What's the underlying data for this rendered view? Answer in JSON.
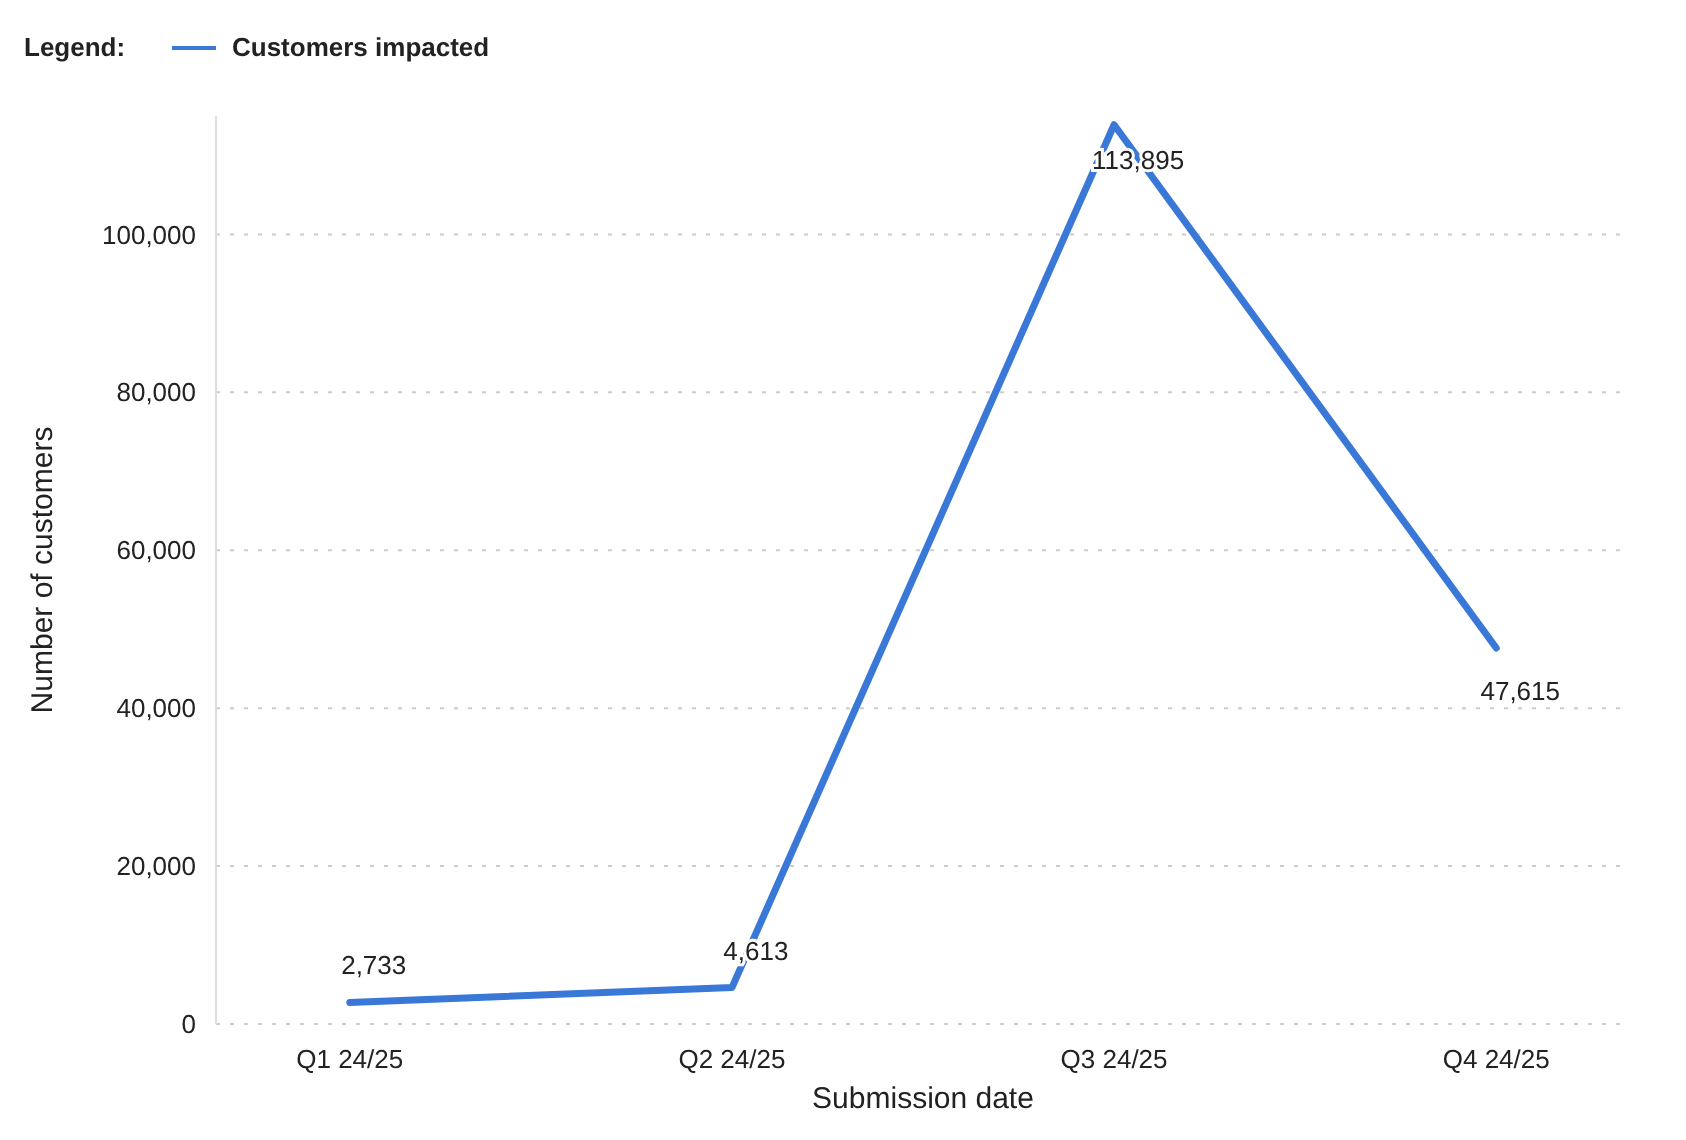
{
  "chart_data": {
    "type": "line",
    "xlabel": "Submission date",
    "ylabel": "Number of customers",
    "legend_title": "Legend:",
    "legend": "top left",
    "categories": [
      "Q1 24/25",
      "Q2 24/25",
      "Q3 24/25",
      "Q4 24/25"
    ],
    "series": [
      {
        "name": "Customers impacted",
        "color": "#3a78d8",
        "values": [
          2733,
          4613,
          113895,
          47615
        ],
        "value_labels": [
          "2,733",
          "4,613",
          "113,895",
          "47,615"
        ]
      }
    ],
    "ylim": [
      0,
      115000
    ],
    "yticks": [
      0,
      {
        "value": 20000,
        "label": "20,000"
      },
      {
        "value": 40000,
        "label": "40,000"
      },
      {
        "value": 60000,
        "label": "60,000"
      },
      {
        "value": 80000,
        "label": "80,000"
      },
      {
        "value": 100000,
        "label": "100,000"
      }
    ],
    "grid": "y",
    "line_style": "solid",
    "marker": "none"
  }
}
